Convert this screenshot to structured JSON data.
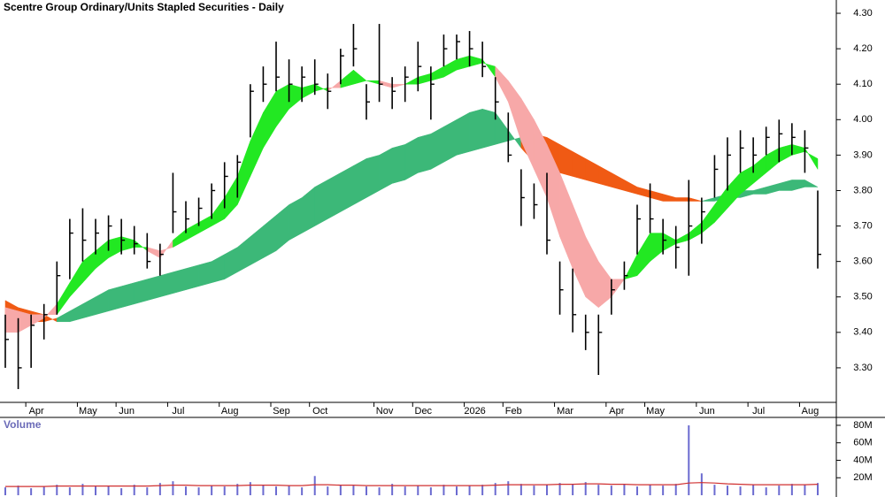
{
  "chart_data": {
    "type": "ohlc",
    "title": "Scentre Group Ordinary/Units Stapled Securities - Daily",
    "categories": [
      null,
      null,
      "Apr",
      null,
      null,
      null,
      "May",
      null,
      null,
      "Jun",
      null,
      null,
      null,
      "Jul",
      null,
      null,
      null,
      "Aug",
      null,
      null,
      null,
      "Sep",
      null,
      null,
      "Oct",
      null,
      null,
      null,
      null,
      "Nov",
      null,
      null,
      "Dec",
      null,
      null,
      null,
      "2026",
      null,
      null,
      "Feb",
      null,
      null,
      null,
      "Mar",
      null,
      null,
      null,
      "Apr",
      null,
      null,
      "May",
      null,
      null,
      null,
      "Jun",
      null,
      null,
      null,
      "Jul",
      null,
      null,
      null,
      "Aug",
      null
    ],
    "high": [
      3.45,
      3.44,
      3.45,
      3.48,
      3.6,
      3.72,
      3.75,
      3.72,
      3.73,
      3.72,
      3.7,
      3.68,
      3.65,
      3.85,
      3.77,
      3.78,
      3.82,
      3.88,
      3.9,
      4.1,
      4.15,
      4.22,
      4.17,
      4.15,
      4.17,
      4.13,
      4.2,
      4.27,
      4.1,
      4.27,
      4.12,
      4.15,
      4.22,
      4.15,
      4.24,
      4.24,
      4.25,
      4.22,
      4.12,
      4.02,
      3.86,
      3.82,
      3.85,
      3.6,
      3.58,
      3.45,
      3.45,
      3.55,
      3.6,
      3.76,
      3.82,
      3.72,
      3.7,
      3.83,
      3.78,
      3.9,
      3.95,
      3.97,
      3.95,
      3.98,
      4.0,
      3.99,
      3.97,
      3.8
    ],
    "low": [
      3.3,
      3.24,
      3.3,
      3.38,
      3.45,
      3.55,
      3.6,
      3.62,
      3.63,
      3.62,
      3.62,
      3.58,
      3.56,
      3.68,
      3.68,
      3.7,
      3.72,
      3.75,
      3.78,
      3.95,
      4.05,
      4.08,
      4.05,
      4.05,
      4.07,
      4.03,
      4.1,
      4.15,
      4.0,
      4.05,
      4.03,
      4.05,
      4.08,
      4.0,
      4.15,
      4.17,
      4.15,
      4.12,
      4.0,
      3.88,
      3.7,
      3.72,
      3.62,
      3.45,
      3.4,
      3.35,
      3.28,
      3.45,
      3.52,
      3.62,
      3.68,
      3.62,
      3.58,
      3.56,
      3.65,
      3.78,
      3.8,
      3.85,
      3.85,
      3.9,
      3.88,
      3.9,
      3.85,
      3.58
    ],
    "close": [
      3.38,
      3.3,
      3.42,
      3.45,
      3.56,
      3.68,
      3.66,
      3.68,
      3.7,
      3.66,
      3.65,
      3.6,
      3.62,
      3.74,
      3.72,
      3.75,
      3.8,
      3.84,
      3.88,
      4.08,
      4.1,
      4.12,
      4.1,
      4.12,
      4.1,
      4.08,
      4.18,
      4.2,
      4.05,
      4.1,
      4.08,
      4.12,
      4.15,
      4.1,
      4.2,
      4.22,
      4.2,
      4.15,
      4.05,
      3.9,
      3.78,
      3.76,
      3.66,
      3.52,
      3.45,
      3.4,
      3.4,
      3.52,
      3.56,
      3.72,
      3.72,
      3.66,
      3.64,
      3.7,
      3.74,
      3.86,
      3.9,
      3.92,
      3.9,
      3.95,
      3.96,
      3.95,
      3.92,
      3.62
    ],
    "bar_color": "#000000",
    "ribbons": [
      {
        "fast": [
          3.45,
          3.44,
          3.43,
          3.43,
          3.44,
          3.46,
          3.48,
          3.5,
          3.52,
          3.53,
          3.54,
          3.55,
          3.56,
          3.57,
          3.58,
          3.59,
          3.6,
          3.62,
          3.64,
          3.67,
          3.7,
          3.73,
          3.76,
          3.78,
          3.81,
          3.83,
          3.85,
          3.87,
          3.89,
          3.9,
          3.92,
          3.93,
          3.95,
          3.96,
          3.98,
          4.0,
          4.02,
          4.03,
          4.02,
          3.97,
          3.92,
          3.88,
          3.86,
          3.85,
          3.84,
          3.83,
          3.82,
          3.81,
          3.8,
          3.79,
          3.78,
          3.77,
          3.77,
          3.77,
          3.77,
          3.78,
          3.79,
          3.8,
          3.8,
          3.81,
          3.82,
          3.83,
          3.83,
          3.81
        ],
        "slow": [
          3.49,
          3.47,
          3.46,
          3.45,
          3.43,
          3.43,
          3.44,
          3.45,
          3.46,
          3.47,
          3.48,
          3.49,
          3.5,
          3.51,
          3.52,
          3.53,
          3.54,
          3.55,
          3.57,
          3.59,
          3.61,
          3.63,
          3.66,
          3.68,
          3.7,
          3.72,
          3.74,
          3.76,
          3.78,
          3.8,
          3.82,
          3.83,
          3.85,
          3.86,
          3.88,
          3.9,
          3.91,
          3.92,
          3.93,
          3.94,
          3.95,
          3.96,
          3.95,
          3.93,
          3.91,
          3.89,
          3.87,
          3.85,
          3.83,
          3.81,
          3.8,
          3.79,
          3.78,
          3.78,
          3.77,
          3.77,
          3.78,
          3.78,
          3.79,
          3.79,
          3.8,
          3.8,
          3.81,
          3.81
        ],
        "up_color": "#3cb878",
        "down_color": "#f05a14"
      },
      {
        "fast": [
          3.4,
          3.4,
          3.42,
          3.44,
          3.48,
          3.54,
          3.6,
          3.63,
          3.66,
          3.67,
          3.66,
          3.63,
          3.61,
          3.66,
          3.69,
          3.71,
          3.73,
          3.78,
          3.84,
          3.94,
          4.02,
          4.08,
          4.1,
          4.09,
          4.1,
          4.08,
          4.11,
          4.14,
          4.11,
          4.1,
          4.09,
          4.1,
          4.12,
          4.13,
          4.15,
          4.17,
          4.18,
          4.17,
          4.12,
          4.05,
          3.94,
          3.86,
          3.78,
          3.67,
          3.58,
          3.5,
          3.47,
          3.5,
          3.55,
          3.62,
          3.68,
          3.68,
          3.66,
          3.68,
          3.71,
          3.76,
          3.81,
          3.85,
          3.87,
          3.9,
          3.92,
          3.93,
          3.92,
          3.86
        ],
        "slow": [
          3.47,
          3.46,
          3.45,
          3.45,
          3.45,
          3.5,
          3.54,
          3.58,
          3.61,
          3.63,
          3.64,
          3.64,
          3.63,
          3.64,
          3.66,
          3.68,
          3.7,
          3.72,
          3.76,
          3.84,
          3.92,
          3.98,
          4.03,
          4.06,
          4.08,
          4.09,
          4.09,
          4.1,
          4.11,
          4.11,
          4.1,
          4.1,
          4.1,
          4.11,
          4.12,
          4.14,
          4.15,
          4.16,
          4.15,
          4.11,
          4.06,
          4.0,
          3.93,
          3.85,
          3.76,
          3.67,
          3.6,
          3.55,
          3.55,
          3.56,
          3.6,
          3.63,
          3.65,
          3.66,
          3.68,
          3.71,
          3.75,
          3.79,
          3.82,
          3.85,
          3.88,
          3.9,
          3.91,
          3.89
        ],
        "up_color": "#22e822",
        "down_color": "#f7a8a8"
      }
    ],
    "ylim": [
      3.21,
      4.33
    ],
    "yticks": [
      {
        "value": 3.3,
        "label": "3.30"
      },
      {
        "value": 3.4,
        "label": "3.40"
      },
      {
        "value": 3.5,
        "label": "3.50"
      },
      {
        "value": 3.6,
        "label": "3.60"
      },
      {
        "value": 3.7,
        "label": "3.70"
      },
      {
        "value": 3.8,
        "label": "3.80"
      },
      {
        "value": 3.9,
        "label": "3.90"
      },
      {
        "value": 4.0,
        "label": "4.00"
      },
      {
        "value": 4.1,
        "label": "4.10"
      },
      {
        "value": 4.2,
        "label": "4.20"
      },
      {
        "value": 4.3,
        "label": "4.30"
      }
    ],
    "volume": {
      "title": "Volume",
      "values": [
        9000000.0,
        11000000.0,
        8000000.0,
        10000000.0,
        12000000.0,
        9000000.0,
        13000000.0,
        10000000.0,
        11000000.0,
        8000000.0,
        12000000.0,
        9000000.0,
        14000000.0,
        16000000.0,
        10000000.0,
        9000000.0,
        11000000.0,
        10000000.0,
        13000000.0,
        15000000.0,
        12000000.0,
        10000000.0,
        11000000.0,
        9000000.0,
        22000000.0,
        10000000.0,
        12000000.0,
        11000000.0,
        10000000.0,
        9000000.0,
        13000000.0,
        10000000.0,
        11000000.0,
        9000000.0,
        12000000.0,
        10000000.0,
        11000000.0,
        12000000.0,
        14000000.0,
        16000000.0,
        13000000.0,
        11000000.0,
        12000000.0,
        14000000.0,
        13000000.0,
        15000000.0,
        12000000.0,
        11000000.0,
        13000000.0,
        10000000.0,
        12000000.0,
        11000000.0,
        13000000.0,
        80000000.0,
        25000000.0,
        12000000.0,
        11000000.0,
        10000000.0,
        12000000.0,
        9000000.0,
        11000000.0,
        13000000.0,
        12000000.0,
        14000000.0
      ],
      "average": [
        10000000.0,
        10000000.0,
        10000000.0,
        10000000.0,
        10500000.0,
        10500000.0,
        10500000.0,
        10500000.0,
        10500000.0,
        10500000.0,
        10500000.0,
        10500000.0,
        11000000.0,
        11500000.0,
        11500000.0,
        11000000.0,
        11000000.0,
        11000000.0,
        11000000.0,
        11500000.0,
        11500000.0,
        11500000.0,
        11000000.0,
        11000000.0,
        12000000.0,
        12000000.0,
        11500000.0,
        11500000.0,
        11000000.0,
        11000000.0,
        11000000.0,
        11000000.0,
        11000000.0,
        11000000.0,
        11000000.0,
        11000000.0,
        11000000.0,
        11000000.0,
        11500000.0,
        12000000.0,
        12000000.0,
        12000000.0,
        12000000.0,
        12500000.0,
        12500000.0,
        13000000.0,
        13000000.0,
        12500000.0,
        12500000.0,
        12000000.0,
        12000000.0,
        12000000.0,
        12000000.0,
        14000000.0,
        14500000.0,
        14000000.0,
        13000000.0,
        12500000.0,
        12000000.0,
        12000000.0,
        12000000.0,
        12000000.0,
        12000000.0,
        12500000.0
      ],
      "color": "#6b6bd0",
      "average_color": "#d03030",
      "ylim": [
        0,
        85000000
      ],
      "yticks": [
        {
          "value": 20000000,
          "label": "20M"
        },
        {
          "value": 40000000,
          "label": "40M"
        },
        {
          "value": 60000000,
          "label": "60M"
        },
        {
          "value": 80000000,
          "label": "80M"
        }
      ]
    }
  }
}
